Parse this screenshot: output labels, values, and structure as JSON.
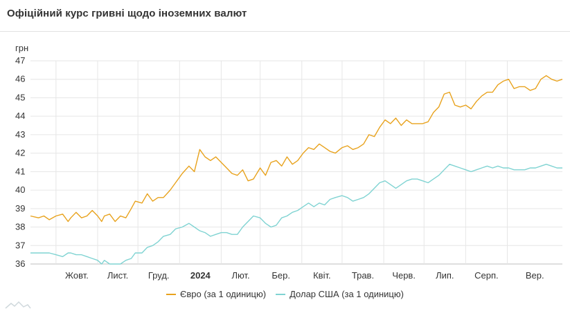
{
  "header": {
    "title": "Офіційний курс гривні щодо іноземних валют"
  },
  "colors": {
    "euro": "#e8a21c",
    "usd": "#7fd3d2",
    "grid": "#e6e6e6"
  },
  "chart_data": {
    "type": "line",
    "title": "Офіційний курс гривні щодо іноземних валют",
    "ylabel": "грн",
    "xlabel": "",
    "ylim": [
      36,
      47
    ],
    "yticks": [
      36,
      37,
      38,
      39,
      40,
      41,
      42,
      43,
      44,
      45,
      46,
      47
    ],
    "grid": true,
    "legend_position": "bottom-center",
    "x_range": [
      "2023-09-12",
      "2024-10-12"
    ],
    "x_ticks": [
      {
        "date": "2023-10-01",
        "label": "Жовт."
      },
      {
        "date": "2023-11-01",
        "label": "Лист."
      },
      {
        "date": "2023-12-01",
        "label": "Груд."
      },
      {
        "date": "2024-01-01",
        "label": "2024"
      },
      {
        "date": "2024-02-01",
        "label": "Лют."
      },
      {
        "date": "2024-03-01",
        "label": "Бер."
      },
      {
        "date": "2024-04-01",
        "label": "Квіт."
      },
      {
        "date": "2024-05-01",
        "label": "Трав."
      },
      {
        "date": "2024-06-01",
        "label": "Черв."
      },
      {
        "date": "2024-07-01",
        "label": "Лип."
      },
      {
        "date": "2024-08-01",
        "label": "Серп."
      },
      {
        "date": "2024-09-01",
        "label": "Вер."
      }
    ],
    "series": [
      {
        "name": "Євро (за 1 одиницю)",
        "color": "#e8a21c",
        "x": [
          "2023-09-12",
          "2023-09-18",
          "2023-09-22",
          "2023-09-26",
          "2023-10-01",
          "2023-10-06",
          "2023-10-10",
          "2023-10-12",
          "2023-10-16",
          "2023-10-20",
          "2023-10-24",
          "2023-10-28",
          "2023-11-01",
          "2023-11-04",
          "2023-11-06",
          "2023-11-10",
          "2023-11-14",
          "2023-11-18",
          "2023-11-22",
          "2023-11-26",
          "2023-11-29",
          "2023-12-04",
          "2023-12-08",
          "2023-12-12",
          "2023-12-16",
          "2023-12-20",
          "2023-12-25",
          "2023-12-29",
          "2024-01-03",
          "2024-01-08",
          "2024-01-12",
          "2024-01-16",
          "2024-01-20",
          "2024-01-24",
          "2024-01-28",
          "2024-02-01",
          "2024-02-05",
          "2024-02-09",
          "2024-02-13",
          "2024-02-17",
          "2024-02-21",
          "2024-02-25",
          "2024-03-01",
          "2024-03-05",
          "2024-03-09",
          "2024-03-13",
          "2024-03-17",
          "2024-03-21",
          "2024-03-25",
          "2024-03-29",
          "2024-04-02",
          "2024-04-06",
          "2024-04-10",
          "2024-04-14",
          "2024-04-18",
          "2024-04-22",
          "2024-04-26",
          "2024-05-01",
          "2024-05-05",
          "2024-05-09",
          "2024-05-13",
          "2024-05-17",
          "2024-05-21",
          "2024-05-25",
          "2024-05-29",
          "2024-06-02",
          "2024-06-06",
          "2024-06-10",
          "2024-06-14",
          "2024-06-18",
          "2024-06-22",
          "2024-06-26",
          "2024-06-30",
          "2024-07-04",
          "2024-07-08",
          "2024-07-12",
          "2024-07-16",
          "2024-07-20",
          "2024-07-24",
          "2024-07-28",
          "2024-08-01",
          "2024-08-05",
          "2024-08-09",
          "2024-08-13",
          "2024-08-17",
          "2024-08-21",
          "2024-08-25",
          "2024-08-29",
          "2024-09-02",
          "2024-09-06",
          "2024-09-10",
          "2024-09-14",
          "2024-09-18",
          "2024-09-22",
          "2024-09-26",
          "2024-09-30",
          "2024-10-04",
          "2024-10-08",
          "2024-10-12"
        ],
        "values": [
          38.6,
          38.5,
          38.6,
          38.4,
          38.6,
          38.7,
          38.3,
          38.5,
          38.8,
          38.5,
          38.6,
          38.9,
          38.6,
          38.3,
          38.6,
          38.7,
          38.3,
          38.6,
          38.5,
          39.0,
          39.4,
          39.3,
          39.8,
          39.4,
          39.6,
          39.6,
          40.0,
          40.4,
          40.9,
          41.3,
          41.0,
          42.2,
          41.8,
          41.6,
          41.8,
          41.5,
          41.2,
          40.9,
          40.8,
          41.1,
          40.5,
          40.6,
          41.2,
          40.8,
          41.5,
          41.6,
          41.3,
          41.8,
          41.4,
          41.6,
          42.0,
          42.3,
          42.2,
          42.5,
          42.3,
          42.1,
          42.0,
          42.3,
          42.4,
          42.2,
          42.3,
          42.5,
          43.0,
          42.9,
          43.4,
          43.8,
          43.6,
          43.9,
          43.5,
          43.8,
          43.6,
          43.6,
          43.6,
          43.7,
          44.2,
          44.5,
          45.2,
          45.3,
          44.6,
          44.5,
          44.6,
          44.4,
          44.8,
          45.1,
          45.3,
          45.3,
          45.7,
          45.9,
          46.0,
          45.5,
          45.6,
          45.6,
          45.4,
          45.5,
          46.0,
          46.2,
          46.0,
          45.9,
          46.0
        ]
      },
      {
        "name": "Долар США (за 1 одиницю)",
        "color": "#7fd3d2",
        "x": [
          "2023-09-12",
          "2023-09-18",
          "2023-09-22",
          "2023-09-26",
          "2023-10-01",
          "2023-10-06",
          "2023-10-10",
          "2023-10-12",
          "2023-10-16",
          "2023-10-20",
          "2023-10-24",
          "2023-10-28",
          "2023-11-01",
          "2023-11-04",
          "2023-11-06",
          "2023-11-10",
          "2023-11-14",
          "2023-11-18",
          "2023-11-22",
          "2023-11-26",
          "2023-11-29",
          "2023-12-04",
          "2023-12-08",
          "2023-12-12",
          "2023-12-16",
          "2023-12-20",
          "2023-12-25",
          "2023-12-29",
          "2024-01-03",
          "2024-01-08",
          "2024-01-12",
          "2024-01-16",
          "2024-01-20",
          "2024-01-24",
          "2024-01-28",
          "2024-02-01",
          "2024-02-05",
          "2024-02-09",
          "2024-02-13",
          "2024-02-17",
          "2024-02-21",
          "2024-02-25",
          "2024-03-01",
          "2024-03-05",
          "2024-03-09",
          "2024-03-13",
          "2024-03-17",
          "2024-03-21",
          "2024-03-25",
          "2024-03-29",
          "2024-04-02",
          "2024-04-06",
          "2024-04-10",
          "2024-04-14",
          "2024-04-18",
          "2024-04-22",
          "2024-04-26",
          "2024-05-01",
          "2024-05-05",
          "2024-05-09",
          "2024-05-13",
          "2024-05-17",
          "2024-05-21",
          "2024-05-25",
          "2024-05-29",
          "2024-06-02",
          "2024-06-06",
          "2024-06-10",
          "2024-06-14",
          "2024-06-18",
          "2024-06-22",
          "2024-06-26",
          "2024-06-30",
          "2024-07-04",
          "2024-07-08",
          "2024-07-12",
          "2024-07-16",
          "2024-07-20",
          "2024-07-24",
          "2024-07-28",
          "2024-08-01",
          "2024-08-05",
          "2024-08-09",
          "2024-08-13",
          "2024-08-17",
          "2024-08-21",
          "2024-08-25",
          "2024-08-29",
          "2024-09-02",
          "2024-09-06",
          "2024-09-10",
          "2024-09-14",
          "2024-09-18",
          "2024-09-22",
          "2024-09-26",
          "2024-09-30",
          "2024-10-04",
          "2024-10-08",
          "2024-10-12"
        ],
        "values": [
          36.6,
          36.6,
          36.6,
          36.6,
          36.5,
          36.4,
          36.6,
          36.6,
          36.5,
          36.5,
          36.4,
          36.3,
          36.2,
          36.0,
          36.2,
          36.0,
          36.0,
          36.0,
          36.2,
          36.3,
          36.6,
          36.6,
          36.9,
          37.0,
          37.2,
          37.5,
          37.6,
          37.9,
          38.0,
          38.2,
          38.0,
          37.8,
          37.7,
          37.5,
          37.6,
          37.7,
          37.7,
          37.6,
          37.6,
          38.0,
          38.3,
          38.6,
          38.5,
          38.2,
          38.0,
          38.1,
          38.5,
          38.6,
          38.8,
          38.9,
          39.1,
          39.3,
          39.1,
          39.3,
          39.2,
          39.5,
          39.6,
          39.7,
          39.6,
          39.4,
          39.5,
          39.6,
          39.8,
          40.1,
          40.4,
          40.5,
          40.3,
          40.1,
          40.3,
          40.5,
          40.6,
          40.6,
          40.5,
          40.4,
          40.6,
          40.8,
          41.1,
          41.4,
          41.3,
          41.2,
          41.1,
          41.0,
          41.1,
          41.2,
          41.3,
          41.2,
          41.3,
          41.2,
          41.2,
          41.1,
          41.1,
          41.1,
          41.2,
          41.2,
          41.3,
          41.4,
          41.3,
          41.2,
          41.2
        ]
      }
    ]
  }
}
